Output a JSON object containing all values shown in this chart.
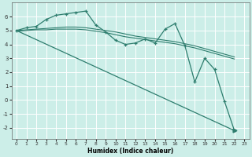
{
  "xlabel": "Humidex (Indice chaleur)",
  "ylabel": "",
  "bg_color": "#cceee8",
  "grid_color": "#ffffff",
  "line_color": "#2e7d6e",
  "xlim": [
    -0.5,
    23.5
  ],
  "ylim": [
    -2.8,
    7.0
  ],
  "yticks": [
    -2,
    -1,
    0,
    1,
    2,
    3,
    4,
    5,
    6
  ],
  "xticks": [
    0,
    1,
    2,
    3,
    4,
    5,
    6,
    7,
    8,
    9,
    10,
    11,
    12,
    13,
    14,
    15,
    16,
    17,
    18,
    19,
    20,
    21,
    22,
    23
  ],
  "series": [
    {
      "x": [
        0,
        1,
        2,
        3,
        4,
        5,
        6,
        7,
        8,
        9,
        10,
        11,
        12,
        13,
        14,
        15,
        16,
        17,
        18,
        19,
        20,
        21,
        22
      ],
      "y": [
        5.0,
        5.2,
        5.3,
        5.8,
        6.1,
        6.2,
        6.3,
        6.4,
        5.4,
        4.9,
        4.3,
        4.0,
        4.1,
        4.4,
        4.1,
        5.1,
        5.5,
        3.9,
        1.3,
        3.0,
        2.2,
        -0.1,
        -2.2
      ]
    },
    {
      "x": [
        0,
        22
      ],
      "y": [
        5.0,
        -2.2
      ]
    },
    {
      "x": [
        0,
        1,
        2,
        3,
        4,
        5,
        6,
        7,
        8,
        9,
        10,
        11,
        12,
        13,
        14,
        15,
        16,
        17,
        18,
        19,
        20,
        21,
        22
      ],
      "y": [
        5.0,
        5.05,
        5.1,
        5.15,
        5.2,
        5.25,
        5.25,
        5.2,
        5.1,
        5.0,
        4.9,
        4.75,
        4.6,
        4.5,
        4.4,
        4.3,
        4.2,
        4.05,
        3.9,
        3.7,
        3.5,
        3.3,
        3.1
      ]
    },
    {
      "x": [
        0,
        1,
        2,
        3,
        4,
        5,
        6,
        7,
        8,
        9,
        10,
        11,
        12,
        13,
        14,
        15,
        16,
        17,
        18,
        19,
        20,
        21,
        22
      ],
      "y": [
        4.95,
        5.0,
        5.05,
        5.05,
        5.1,
        5.1,
        5.1,
        5.05,
        4.95,
        4.85,
        4.7,
        4.55,
        4.45,
        4.35,
        4.25,
        4.15,
        4.05,
        3.9,
        3.75,
        3.55,
        3.35,
        3.15,
        2.95
      ]
    }
  ]
}
